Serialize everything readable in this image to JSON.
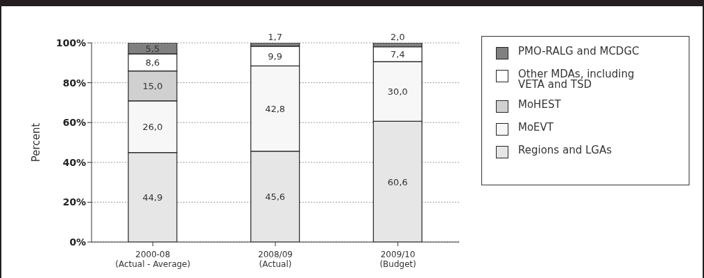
{
  "chart_data": {
    "type": "bar",
    "stacked": true,
    "ylabel": "Percent",
    "categories": [
      "2000-08\n(Actual - Average)",
      "2008/09\n(Actual)",
      "2009/10\n(Budget)"
    ],
    "series": [
      {
        "name": "Regions and LGAs",
        "color": "#e6e6e6",
        "values": [
          44.9,
          45.6,
          60.6
        ],
        "value_labels": [
          "44,9",
          "45,6",
          "60,6"
        ]
      },
      {
        "name": "MoEVT",
        "color": "#f7f7f7",
        "values": [
          26.0,
          42.8,
          30.0
        ],
        "value_labels": [
          "26,0",
          "42,8",
          "30,0"
        ]
      },
      {
        "name": "MoHEST",
        "color": "#d0d0d0",
        "values": [
          15.0,
          null,
          null
        ],
        "value_labels": [
          "15,0",
          null,
          null
        ]
      },
      {
        "name": "Other MDAs, including VETA and TSD",
        "color": "#ffffff",
        "values": [
          8.6,
          9.9,
          7.4
        ],
        "value_labels": [
          "8,6",
          "9,9",
          "7,4"
        ]
      },
      {
        "name": "PMO-RALG and MCDGC",
        "color": "#808080",
        "values": [
          5.5,
          1.7,
          2.0
        ],
        "value_labels": [
          "5,5",
          "1,7",
          "2,0"
        ]
      }
    ],
    "ylim": [
      0,
      100
    ],
    "yticks": [
      {
        "value": 0,
        "label": "0%"
      },
      {
        "value": 20,
        "label": "20%"
      },
      {
        "value": 40,
        "label": "40%"
      },
      {
        "value": 60,
        "label": "60%"
      },
      {
        "value": 80,
        "label": "80%"
      },
      {
        "value": 100,
        "label": "100%"
      }
    ],
    "grid": "y",
    "legend": "right"
  }
}
